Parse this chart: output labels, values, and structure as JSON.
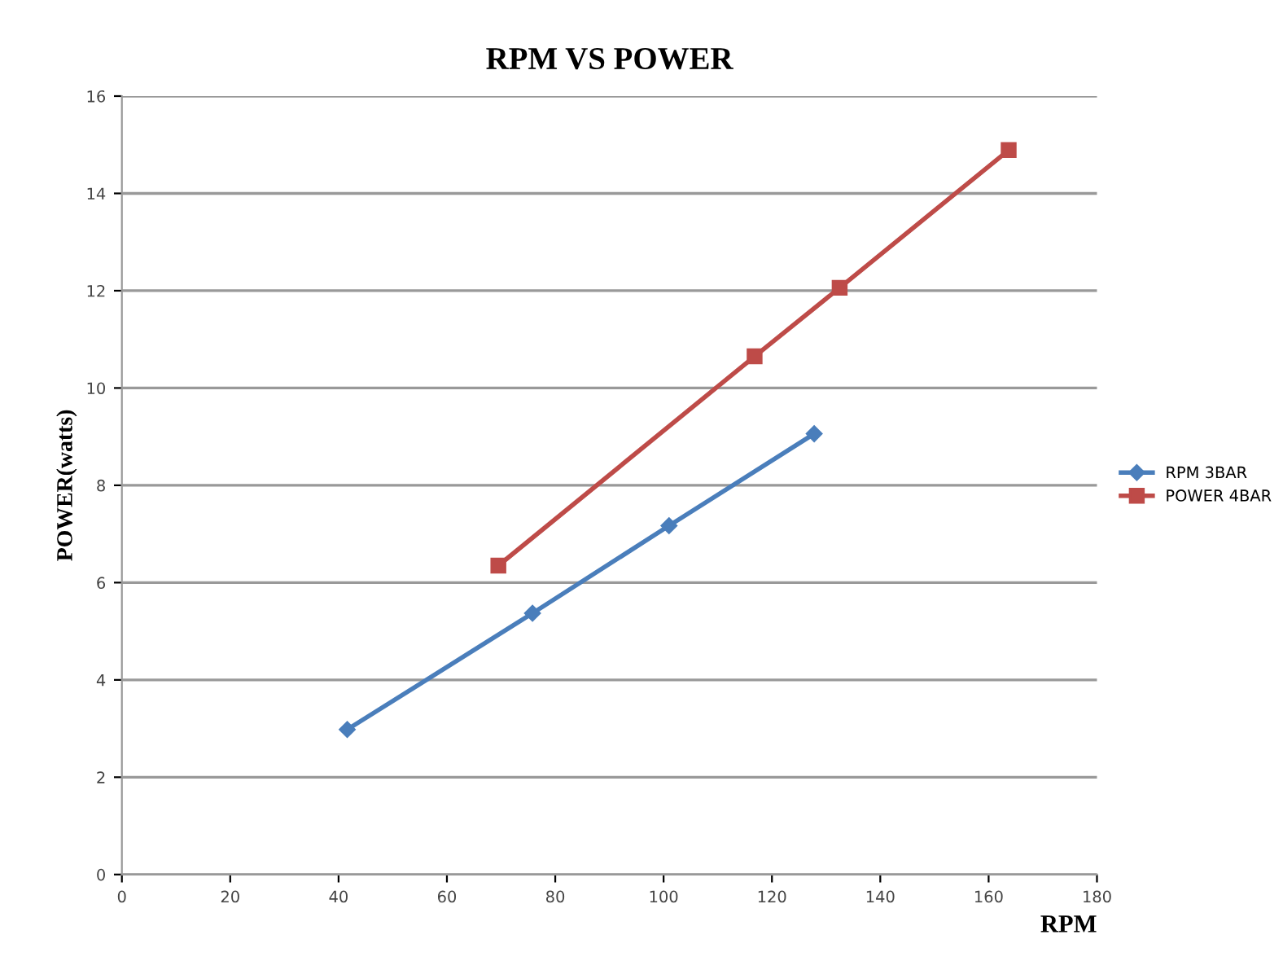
{
  "chart_data": {
    "type": "line",
    "title": "RPM VS POWER",
    "xlabel": "RPM",
    "ylabel": "POWER(watts)",
    "xlim": [
      0,
      180
    ],
    "xticks": [
      0,
      20,
      40,
      60,
      80,
      100,
      120,
      140,
      160,
      180
    ],
    "ylim": [
      0,
      16
    ],
    "yticks": [
      0,
      2,
      4,
      6,
      8,
      10,
      12,
      14,
      16
    ],
    "grid": "y",
    "legend": "right",
    "series": [
      {
        "name": "RPM 3BAR",
        "color": "#4a7ebb",
        "marker": "diamond",
        "x": [
          41.6,
          75.8,
          101,
          127.8
        ],
        "values": [
          2.98,
          5.37,
          7.17,
          9.06
        ]
      },
      {
        "name": "POWER 4BAR",
        "color": "#be4b48",
        "marker": "square",
        "x": [
          69.5,
          116.8,
          132.5,
          163.7
        ],
        "values": [
          6.35,
          10.65,
          12.06,
          14.89
        ]
      }
    ]
  }
}
